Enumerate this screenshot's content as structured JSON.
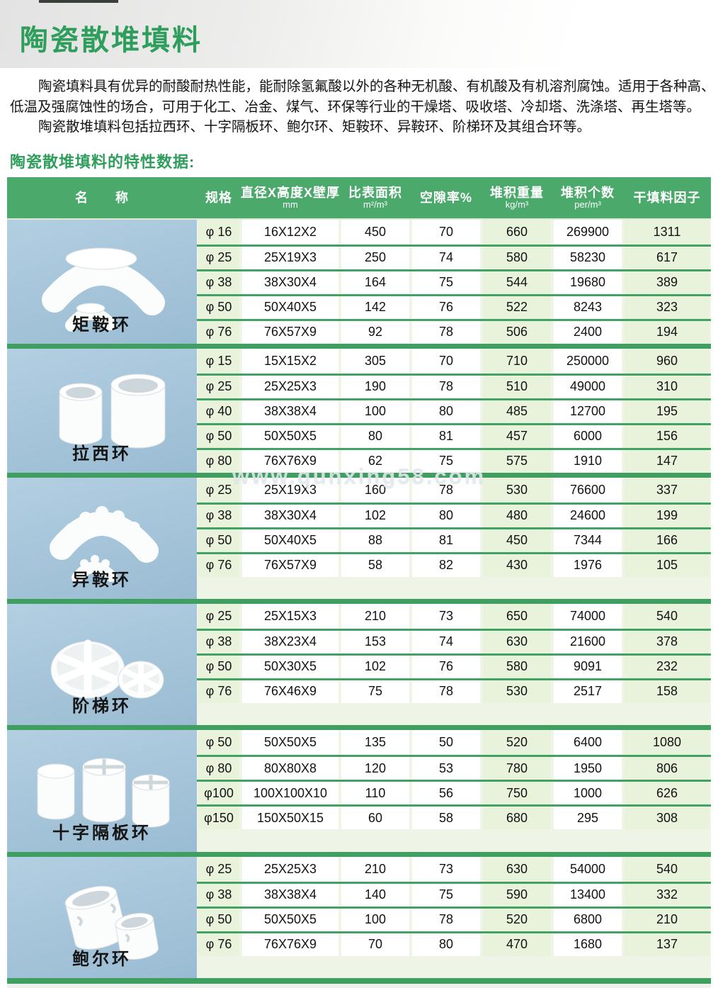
{
  "header": {
    "title": "陶瓷散堆填料"
  },
  "intro": {
    "line1": "陶瓷填料具有优异的耐酸耐热性能，能耐除氢氟酸以外的各种无机酸、有机酸及有机溶剂腐蚀。适用于各种高、",
    "line2": "低温及强腐蚀性的场合，可用于化工、冶金、煤气、环保等行业的干燥塔、吸收塔、冷却塔、洗涤塔、再生塔等。",
    "line3": "陶瓷散堆填料包括拉西环、十字隔板环、鲍尔环、矩鞍环、异鞍环、阶梯环及其组合环等。"
  },
  "section": {
    "heading": "陶瓷散堆填料的特性数据:"
  },
  "watermark": {
    "text": "www.qunxing58.com"
  },
  "colors": {
    "title_green": "#2f9e5c",
    "header_green": "#4ca96c",
    "divider_green": "#3f9f60",
    "tint_green": "#e9f2db",
    "photo_blue": "#a5c4d9"
  },
  "table": {
    "columns": [
      {
        "label": "名　　称",
        "unit": ""
      },
      {
        "label": "规格",
        "unit": ""
      },
      {
        "label": "直径X高度X壁厚",
        "unit": "mm"
      },
      {
        "label": "比表面积",
        "unit": "m²/m³"
      },
      {
        "label": "空隙率%",
        "unit": ""
      },
      {
        "label": "堆积重量",
        "unit": "kg/m³"
      },
      {
        "label": "堆积个数",
        "unit": "per/m³"
      },
      {
        "label": "干填料因子",
        "unit": ""
      }
    ],
    "groups": [
      {
        "name": "矩鞍环",
        "icon": "saddle-ring-photo",
        "rows": [
          {
            "spec": "φ 16",
            "dims": "16X12X2",
            "surface": "450",
            "voidage": "70",
            "weight": "660",
            "count": "269900",
            "factor": "1311"
          },
          {
            "spec": "φ 25",
            "dims": "25X19X3",
            "surface": "250",
            "voidage": "74",
            "weight": "580",
            "count": "58230",
            "factor": "617"
          },
          {
            "spec": "φ 38",
            "dims": "38X30X4",
            "surface": "164",
            "voidage": "75",
            "weight": "544",
            "count": "19680",
            "factor": "389"
          },
          {
            "spec": "φ 50",
            "dims": "50X40X5",
            "surface": "142",
            "voidage": "76",
            "weight": "522",
            "count": "8243",
            "factor": "323"
          },
          {
            "spec": "φ 76",
            "dims": "76X57X9",
            "surface": "92",
            "voidage": "78",
            "weight": "506",
            "count": "2400",
            "factor": "194"
          }
        ]
      },
      {
        "name": "拉西环",
        "icon": "raschig-ring-photo",
        "rows": [
          {
            "spec": "φ 15",
            "dims": "15X15X2",
            "surface": "305",
            "voidage": "70",
            "weight": "710",
            "count": "250000",
            "factor": "960"
          },
          {
            "spec": "φ 25",
            "dims": "25X25X3",
            "surface": "190",
            "voidage": "78",
            "weight": "510",
            "count": "49000",
            "factor": "310"
          },
          {
            "spec": "φ 40",
            "dims": "38X38X4",
            "surface": "100",
            "voidage": "80",
            "weight": "485",
            "count": "12700",
            "factor": "195"
          },
          {
            "spec": "φ 50",
            "dims": "50X50X5",
            "surface": "80",
            "voidage": "81",
            "weight": "457",
            "count": "6000",
            "factor": "156"
          },
          {
            "spec": "φ 80",
            "dims": "76X76X9",
            "surface": "62",
            "voidage": "75",
            "weight": "575",
            "count": "1910",
            "factor": "147"
          }
        ]
      },
      {
        "name": "异鞍环",
        "icon": "intalox-saddle-photo",
        "rows": [
          {
            "spec": "φ 25",
            "dims": "25X19X3",
            "surface": "160",
            "voidage": "78",
            "weight": "530",
            "count": "76600",
            "factor": "337"
          },
          {
            "spec": "φ 38",
            "dims": "38X30X4",
            "surface": "102",
            "voidage": "80",
            "weight": "480",
            "count": "24600",
            "factor": "199"
          },
          {
            "spec": "φ 50",
            "dims": "50X40X5",
            "surface": "88",
            "voidage": "81",
            "weight": "450",
            "count": "7344",
            "factor": "166"
          },
          {
            "spec": "φ 76",
            "dims": "76X57X9",
            "surface": "58",
            "voidage": "82",
            "weight": "430",
            "count": "1976",
            "factor": "105"
          }
        ]
      },
      {
        "name": "阶梯环",
        "icon": "cascade-ring-photo",
        "rows": [
          {
            "spec": "φ 25",
            "dims": "25X15X3",
            "surface": "210",
            "voidage": "73",
            "weight": "650",
            "count": "74000",
            "factor": "540"
          },
          {
            "spec": "φ 38",
            "dims": "38X23X4",
            "surface": "153",
            "voidage": "74",
            "weight": "630",
            "count": "21600",
            "factor": "378"
          },
          {
            "spec": "φ 50",
            "dims": "50X30X5",
            "surface": "102",
            "voidage": "76",
            "weight": "580",
            "count": "9091",
            "factor": "232"
          },
          {
            "spec": "φ 76",
            "dims": "76X46X9",
            "surface": "75",
            "voidage": "78",
            "weight": "530",
            "count": "2517",
            "factor": "158"
          }
        ]
      },
      {
        "name": "十字隔板环",
        "icon": "cross-partition-ring-photo",
        "rows": [
          {
            "spec": "φ 50",
            "dims": "50X50X5",
            "surface": "135",
            "voidage": "50",
            "weight": "520",
            "count": "6400",
            "factor": "1080"
          },
          {
            "spec": "φ 80",
            "dims": "80X80X8",
            "surface": "120",
            "voidage": "53",
            "weight": "780",
            "count": "1950",
            "factor": "806"
          },
          {
            "spec": "φ100",
            "dims": "100X100X10",
            "surface": "110",
            "voidage": "56",
            "weight": "750",
            "count": "1000",
            "factor": "626"
          },
          {
            "spec": "φ150",
            "dims": "150X50X15",
            "surface": "60",
            "voidage": "58",
            "weight": "680",
            "count": "295",
            "factor": "308"
          }
        ]
      },
      {
        "name": "鲍尔环",
        "icon": "pall-ring-photo",
        "rows": [
          {
            "spec": "φ 25",
            "dims": "25X25X3",
            "surface": "210",
            "voidage": "73",
            "weight": "630",
            "count": "54000",
            "factor": "540"
          },
          {
            "spec": "φ 38",
            "dims": "38X38X4",
            "surface": "140",
            "voidage": "75",
            "weight": "590",
            "count": "13400",
            "factor": "332"
          },
          {
            "spec": "φ 50",
            "dims": "50X50X5",
            "surface": "100",
            "voidage": "78",
            "weight": "520",
            "count": "6800",
            "factor": "210"
          },
          {
            "spec": "φ 76",
            "dims": "76X76X9",
            "surface": "70",
            "voidage": "80",
            "weight": "470",
            "count": "1680",
            "factor": "137"
          }
        ]
      }
    ]
  }
}
